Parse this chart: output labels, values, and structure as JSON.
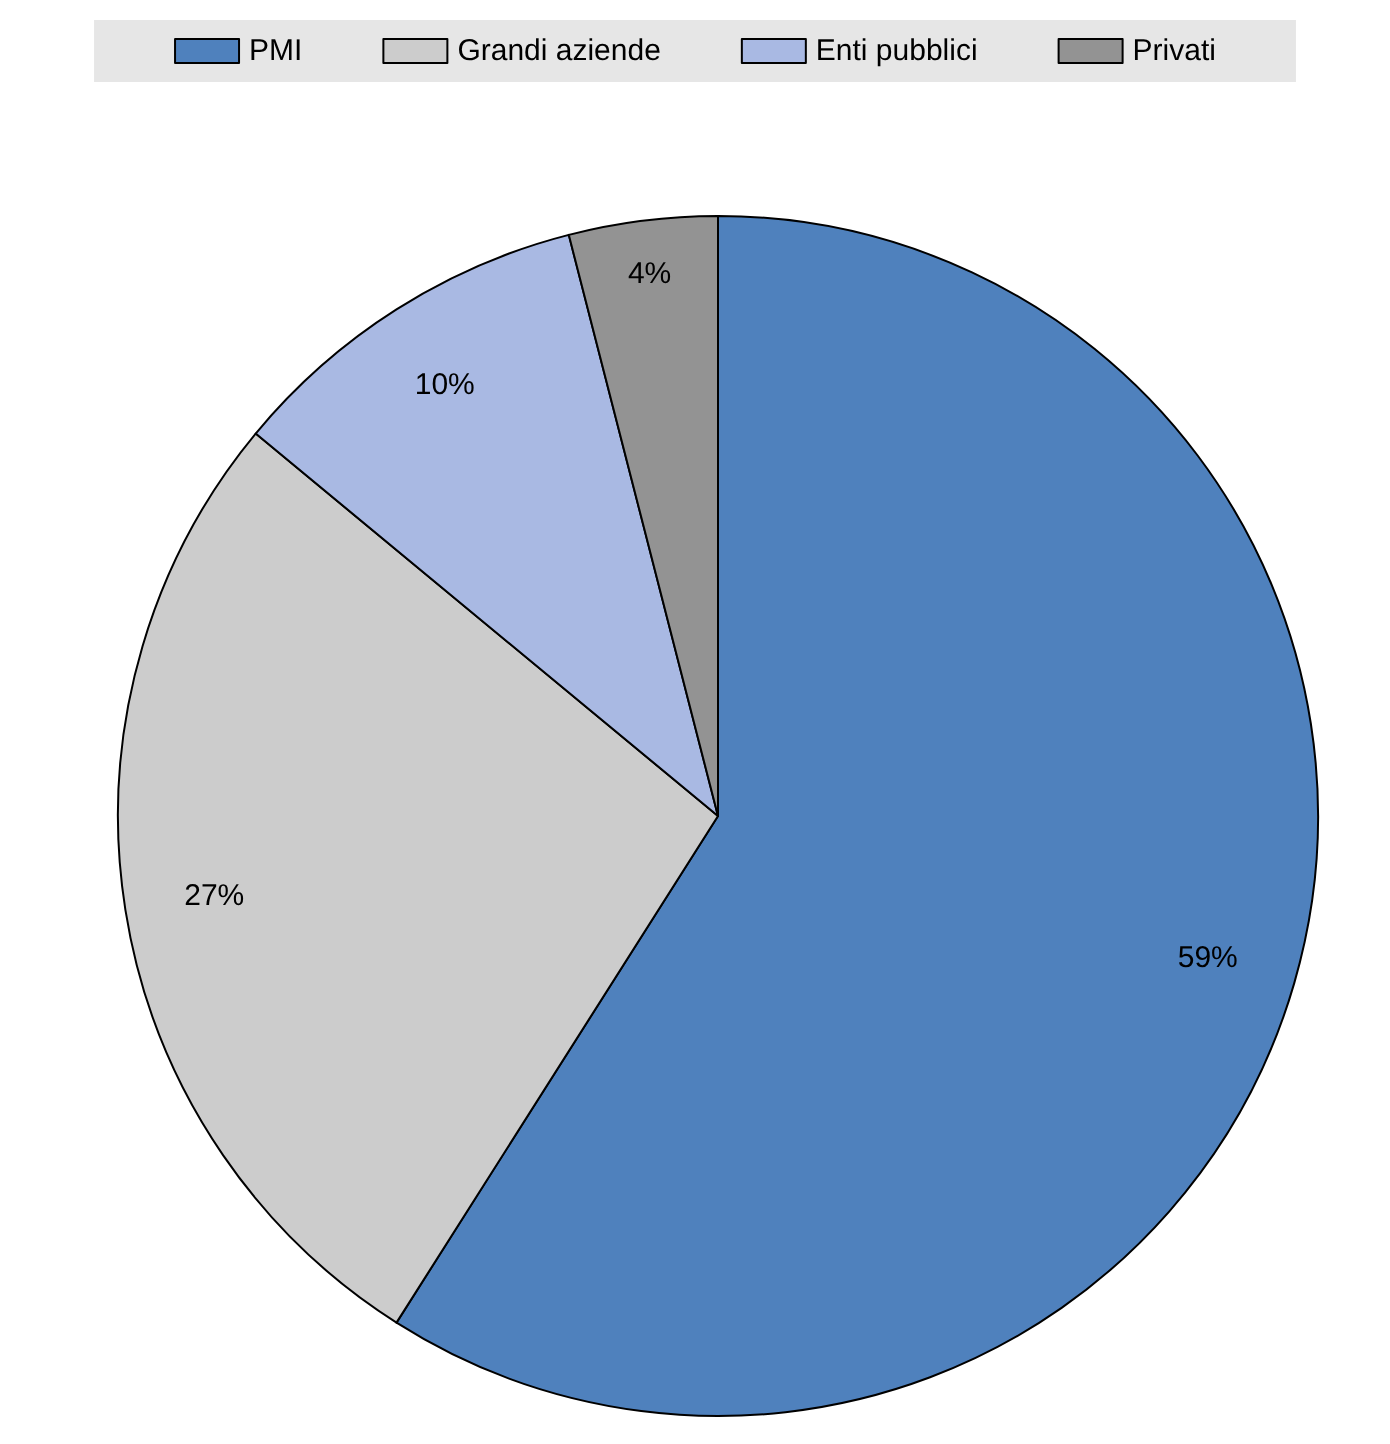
{
  "chart_data": {
    "type": "pie",
    "categories": [
      "PMI",
      "Grandi aziende",
      "Enti pubblici",
      "Privati"
    ],
    "values": [
      59,
      27,
      10,
      4
    ],
    "value_labels": [
      "59%",
      "27%",
      "10%",
      "4%"
    ],
    "colors": [
      "#4f81bd",
      "#cccccc",
      "#a9b9e3",
      "#939393"
    ],
    "legend": "top"
  }
}
